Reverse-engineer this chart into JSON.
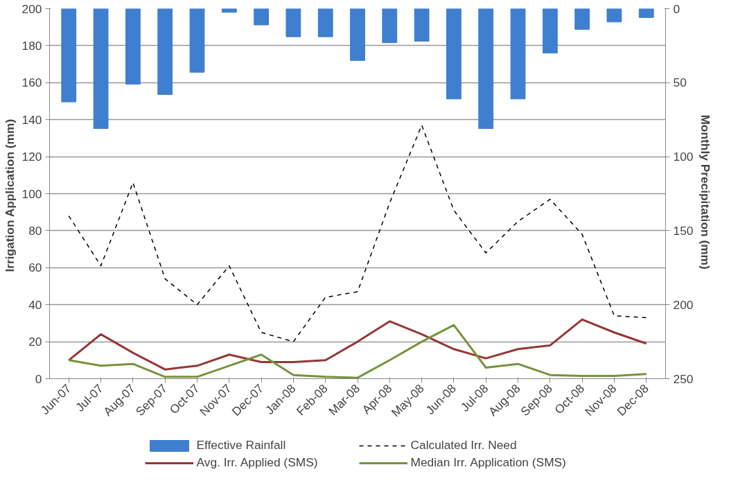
{
  "chart_data": {
    "type": "line",
    "ylabel": "Irrigation Application  (mm)",
    "y2label": "Monthly Precipitation  (mm)",
    "categories": [
      "Jun-07",
      "Jul-07",
      "Aug-07",
      "Sep-07",
      "Oct-07",
      "Nov-07",
      "Dec-07",
      "Jan-08",
      "Feb-08",
      "Mar-08",
      "Apr-08",
      "May-08",
      "Jun-08",
      "Jul-08",
      "Aug-08",
      "Sep-08",
      "Oct-08",
      "Nov-08",
      "Dec-08"
    ],
    "ylim": [
      0,
      200
    ],
    "yticks": [
      0,
      20,
      40,
      60,
      80,
      100,
      120,
      140,
      160,
      180,
      200
    ],
    "y2lim": [
      250,
      0
    ],
    "y2ticks": [
      0,
      50,
      100,
      150,
      200,
      250
    ],
    "grid": "y",
    "legend": "bottom",
    "series": [
      {
        "name": "Effective Rainfall",
        "type": "bar",
        "axis": "y2",
        "color": "#3f7fcf",
        "values": [
          63,
          81,
          51,
          58,
          43,
          2.5,
          11,
          19,
          19,
          35,
          23,
          22,
          61,
          81,
          61,
          30,
          14,
          9,
          6
        ]
      },
      {
        "name": "Calculated Irr. Need",
        "line_style": "dashed",
        "color": "#000000",
        "values": [
          88,
          61,
          106,
          54,
          40,
          61,
          25,
          20,
          44,
          47,
          95,
          137,
          91,
          68,
          85,
          97,
          78,
          34,
          33
        ]
      },
      {
        "name": "Avg. Irr. Applied (SMS)",
        "line_style": "solid",
        "color": "#953735",
        "values": [
          10,
          24,
          14,
          5,
          7,
          13,
          9,
          9,
          10,
          20,
          31,
          24,
          16,
          11,
          16,
          18,
          32,
          25,
          19
        ]
      },
      {
        "name": "Median Irr. Application (SMS)",
        "line_style": "solid",
        "color": "#77933c",
        "values": [
          10,
          7,
          8,
          1,
          1,
          7,
          13,
          2,
          1,
          0.5,
          10,
          20,
          29,
          6,
          8,
          2,
          1.5,
          1.5,
          2.5
        ]
      }
    ]
  }
}
